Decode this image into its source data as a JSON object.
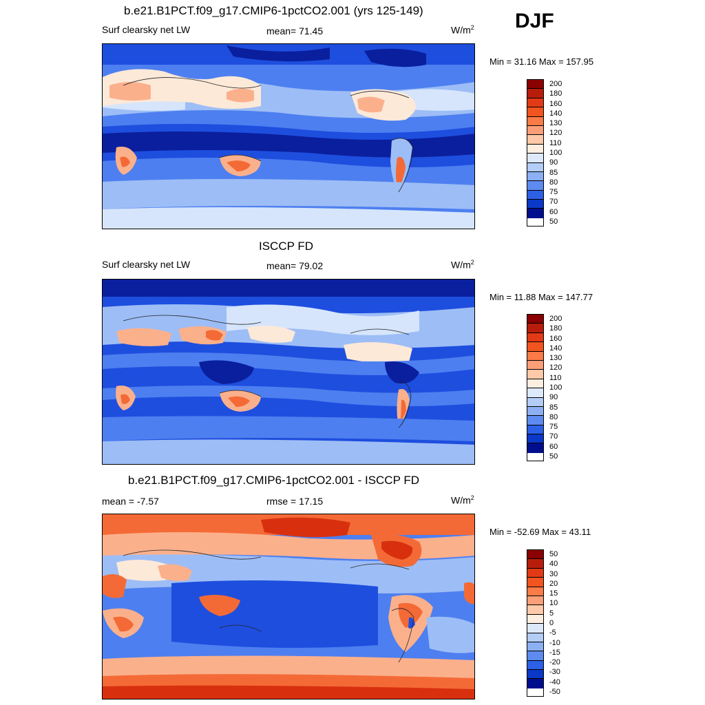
{
  "season": "DJF",
  "panels": [
    {
      "title": "b.e21.B1PCT.f09_g17.CMIP6-1pctCO2.001 (yrs 125-149)",
      "left_label": "Surf clearsky net LW",
      "center_label": "mean=  71.45",
      "units": "W/m",
      "units_sup": "2",
      "minmax": "Min =  31.16 Max = 157.95",
      "colorbar_ticks": [
        "200",
        "180",
        "160",
        "140",
        "130",
        "120",
        "110",
        "100",
        "90",
        "85",
        "80",
        "75",
        "70",
        "60",
        "50"
      ]
    },
    {
      "title": "ISCCP FD",
      "left_label": "Surf clearsky net LW",
      "center_label": "mean=  79.02",
      "units": "W/m",
      "units_sup": "2",
      "minmax": "Min =  11.88 Max = 147.77",
      "colorbar_ticks": [
        "200",
        "180",
        "160",
        "140",
        "130",
        "120",
        "110",
        "100",
        "90",
        "85",
        "80",
        "75",
        "70",
        "60",
        "50"
      ]
    },
    {
      "title": "b.e21.B1PCT.f09_g17.CMIP6-1pctCO2.001 - ISCCP FD",
      "left_label": "mean =  -7.57",
      "center_label": "rmse =  17.15",
      "units": "W/m",
      "units_sup": "2",
      "minmax": "Min = -52.69 Max =  43.11",
      "colorbar_ticks": [
        "50",
        "40",
        "30",
        "20",
        "15",
        "10",
        "5",
        "0",
        "-5",
        "-10",
        "-15",
        "-20",
        "-30",
        "-40",
        "-50"
      ]
    }
  ],
  "colorbar_colors": [
    "#8b0000",
    "#b81d0c",
    "#e23a16",
    "#f2541f",
    "#fb7b47",
    "#fc9f78",
    "#fdc9a9",
    "#fdeee0",
    "#dde9fb",
    "#b4cdf7",
    "#8cb0f3",
    "#5d8bf0",
    "#2c60e6",
    "#0a38c8",
    "#000e8e"
  ],
  "map_colors": {
    "deep_blue": "#0a1f9e",
    "blue": "#1e4ede",
    "mid_blue": "#4d7ff0",
    "light_blue": "#9dbdf6",
    "pale_blue": "#d6e5fb",
    "cream": "#fde9d8",
    "salmon": "#fbb08c",
    "orange": "#f46a36",
    "red": "#d8300f"
  }
}
